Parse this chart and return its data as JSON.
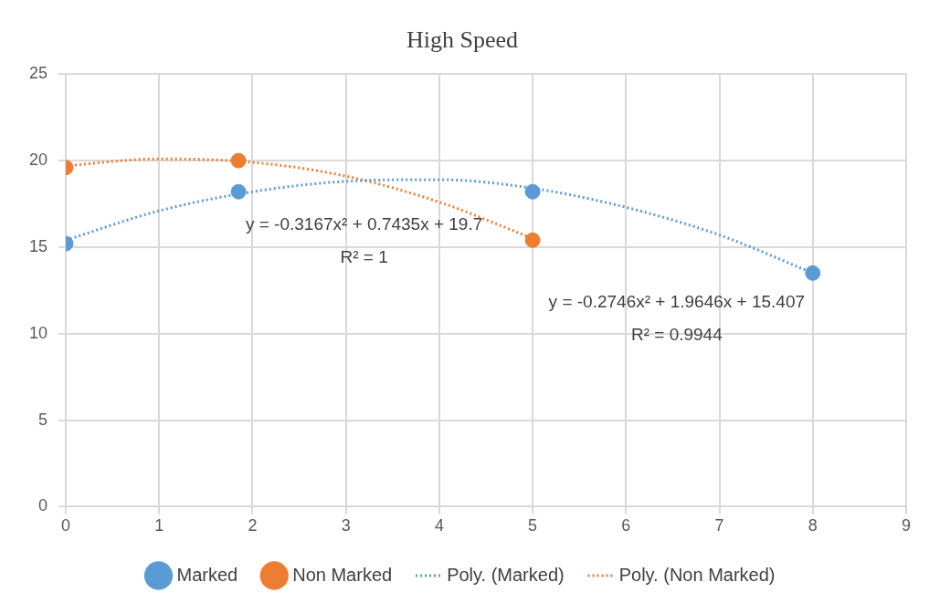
{
  "chart_data": {
    "type": "scatter",
    "title": "High Speed",
    "xlim": [
      0,
      9
    ],
    "xticks": [
      0,
      1,
      2,
      3,
      4,
      5,
      6,
      7,
      8,
      9
    ],
    "ylim": [
      0,
      25
    ],
    "yticks": [
      0,
      5,
      10,
      15,
      20,
      25
    ],
    "grid": true,
    "legend": "bottom",
    "series": [
      {
        "name": "Marked",
        "type": "scatter",
        "color": "#5b9bd5",
        "marker": "circle",
        "x": [
          0,
          1.85,
          5,
          8
        ],
        "values": [
          15.2,
          18.2,
          18.2,
          13.5
        ]
      },
      {
        "name": "Non Marked",
        "type": "scatter",
        "color": "#ed7d31",
        "marker": "circle",
        "x": [
          0,
          1.85,
          5
        ],
        "values": [
          19.6,
          20.0,
          15.4
        ]
      },
      {
        "name": "Poly. (Marked)",
        "type": "line",
        "color": "#5b9bd5",
        "marker": "none",
        "line_style": "dotted",
        "x": [
          0,
          1,
          2,
          3,
          4,
          5,
          6,
          7,
          8
        ],
        "values": [
          15.4,
          17.1,
          18.2,
          18.8,
          18.9,
          18.4,
          17.3,
          15.7,
          13.5
        ]
      },
      {
        "name": "Poly. (Non Marked)",
        "type": "line",
        "color": "#ed7d31",
        "marker": "none",
        "line_style": "dotted",
        "x": [
          0,
          1,
          2,
          3,
          4,
          5
        ],
        "values": [
          19.7,
          20.1,
          19.9,
          19.1,
          17.6,
          15.5
        ]
      }
    ],
    "annotations": [
      "y = -0.3167x² + 0.7435x + 19.7",
      "R² = 1",
      "y = -0.2746x² + 1.9646x + 15.407",
      "R² = 0.9944"
    ]
  }
}
